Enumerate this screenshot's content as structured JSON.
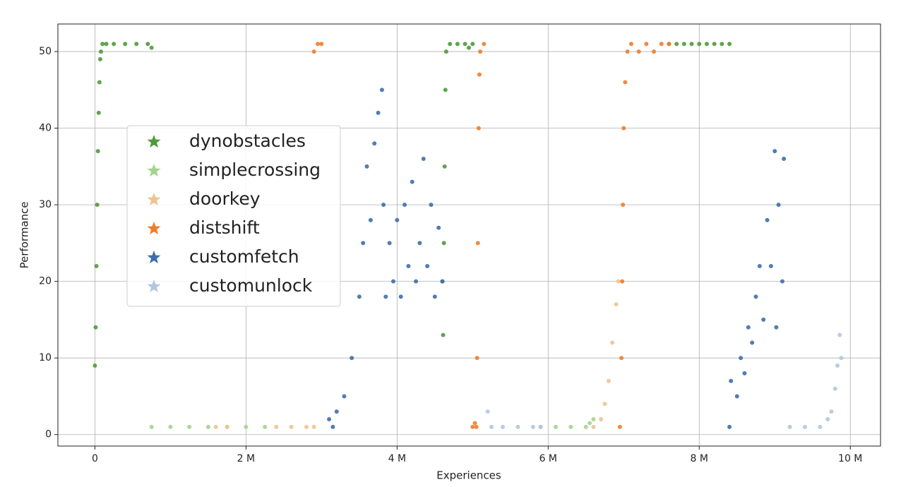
{
  "chart_data": {
    "type": "scatter",
    "x_label": "Experiences",
    "y_label": "Performance",
    "xlim": [
      -490000,
      10400000
    ],
    "ylim": [
      -1.5,
      53.6
    ],
    "xticks": [
      0,
      {
        "value": 2000000,
        "label": "2 M"
      },
      {
        "value": 4000000,
        "label": "4 M"
      },
      {
        "value": 6000000,
        "label": "6 M"
      },
      {
        "value": 8000000,
        "label": "8 M"
      },
      {
        "value": 10000000,
        "label": "10 M"
      }
    ],
    "yticks": [
      0,
      10,
      20,
      30,
      40,
      50
    ],
    "grid": true,
    "legend_loc": "center left",
    "series": [
      {
        "name": "dynobstacles",
        "color": "#4f9a3c",
        "x": [
          0,
          10000,
          20000,
          30000,
          40000,
          50000,
          60000,
          70000,
          80000,
          100000,
          150000,
          250000,
          400000,
          550000,
          700000,
          750000,
          4600000,
          4610000,
          4620000,
          4630000,
          4640000,
          4650000,
          4700000,
          4800000,
          4900000,
          4950000,
          5000000,
          7600000,
          7700000,
          7800000,
          7900000,
          8000000,
          8100000,
          8200000,
          8300000,
          8400000
        ],
        "y": [
          9,
          14,
          22,
          30,
          37,
          42,
          46,
          49,
          50,
          51,
          51,
          51,
          51,
          51,
          51,
          50.5,
          20,
          13,
          25,
          35,
          45,
          50,
          51,
          51,
          51,
          50.5,
          51,
          51,
          51,
          51,
          51,
          51,
          51,
          51,
          51,
          51
        ]
      },
      {
        "name": "simplecrossing",
        "color": "#a5d38e",
        "x": [
          750000,
          1000000,
          1250000,
          1500000,
          1750000,
          2000000,
          2250000,
          5900000,
          6100000,
          6300000,
          6500000,
          6550000,
          6600000
        ],
        "y": [
          1,
          1,
          1,
          1,
          1,
          1,
          1,
          1,
          1,
          1,
          1,
          1.5,
          2
        ]
      },
      {
        "name": "doorkey",
        "color": "#f2c28e",
        "x": [
          1600000,
          1750000,
          2400000,
          2600000,
          2800000,
          2900000,
          6600000,
          6700000,
          6750000,
          6800000,
          6850000,
          6900000,
          6930000
        ],
        "y": [
          1,
          1,
          1,
          1,
          1,
          1,
          1,
          2,
          4,
          7,
          12,
          17,
          20
        ]
      },
      {
        "name": "distshift",
        "color": "#ee7d2d",
        "x": [
          2900000,
          2950000,
          3000000,
          5000000,
          5030000,
          5050000,
          5060000,
          5070000,
          5080000,
          5090000,
          5100000,
          5150000,
          6950000,
          6970000,
          6980000,
          6990000,
          7000000,
          7020000,
          7050000,
          7100000,
          7200000,
          7300000,
          7400000,
          7500000,
          7600000
        ],
        "y": [
          50,
          51,
          51,
          1,
          1.5,
          1,
          10,
          25,
          40,
          47,
          50,
          51,
          1,
          10,
          20,
          30,
          40,
          46,
          50,
          51,
          50,
          51,
          50,
          51,
          51
        ]
      },
      {
        "name": "customfetch",
        "color": "#3e6fa9",
        "x": [
          3100000,
          3150000,
          3200000,
          3300000,
          3400000,
          3500000,
          3550000,
          3600000,
          3650000,
          3700000,
          3750000,
          3800000,
          3820000,
          3850000,
          3900000,
          3950000,
          4000000,
          4050000,
          4100000,
          4150000,
          4200000,
          4250000,
          4300000,
          4350000,
          4400000,
          4450000,
          4500000,
          4550000,
          4600000,
          8400000,
          8420000,
          8500000,
          8550000,
          8600000,
          8650000,
          8700000,
          8750000,
          8800000,
          8850000,
          8900000,
          8950000,
          9000000,
          9020000,
          9050000,
          9100000,
          9120000
        ],
        "y": [
          2,
          1,
          3,
          5,
          10,
          18,
          25,
          35,
          28,
          38,
          42,
          45,
          30,
          18,
          25,
          20,
          28,
          18,
          30,
          22,
          33,
          20,
          25,
          36,
          22,
          30,
          18,
          27,
          20,
          1,
          7,
          5,
          10,
          8,
          14,
          12,
          18,
          22,
          15,
          28,
          22,
          37,
          14,
          30,
          20,
          36
        ]
      },
      {
        "name": "customunlock",
        "color": "#b3c6df",
        "x": [
          5200000,
          5250000,
          5400000,
          5600000,
          5800000,
          5900000,
          9200000,
          9400000,
          9600000,
          9700000,
          9750000,
          9800000,
          9830000,
          9860000,
          9880000
        ],
        "y": [
          3,
          1,
          1,
          1,
          1,
          1,
          1,
          1,
          1,
          2,
          3,
          6,
          9,
          13,
          10
        ]
      }
    ]
  }
}
